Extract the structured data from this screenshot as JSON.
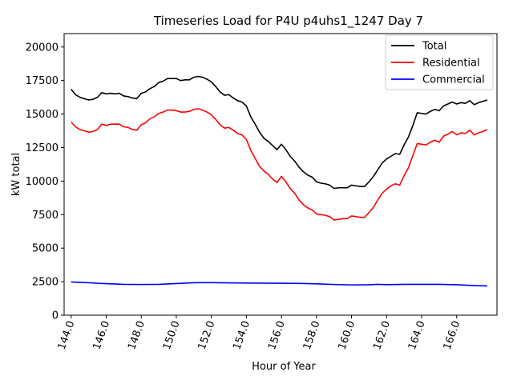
{
  "chart_data": {
    "type": "line",
    "title": "Timeseries Load for P4U p4uhs1_1247  Day 7",
    "xlabel": "Hour of Year",
    "ylabel": "kW total",
    "xlim": [
      143.6,
      168.3
    ],
    "ylim": [
      0,
      21000
    ],
    "xticks": [
      144,
      146,
      148,
      150,
      152,
      154,
      156,
      158,
      160,
      162,
      164,
      166
    ],
    "xtick_labels": [
      "144.0",
      "146.0",
      "148.0",
      "150.0",
      "152.0",
      "154.0",
      "156.0",
      "158.0",
      "160.0",
      "162.0",
      "164.0",
      "166.0"
    ],
    "yticks": [
      0,
      2500,
      5000,
      7500,
      10000,
      12500,
      15000,
      17500,
      20000
    ],
    "ytick_labels": [
      "0",
      "2500",
      "5000",
      "7500",
      "10000",
      "12500",
      "15000",
      "17500",
      "20000"
    ],
    "legend_position": "top-right",
    "series": [
      {
        "name": "Total",
        "color": "#000000",
        "x": [
          144.0,
          144.25,
          144.5,
          144.75,
          145.0,
          145.25,
          145.5,
          145.75,
          146.0,
          146.25,
          146.5,
          146.75,
          147.0,
          147.25,
          147.5,
          147.75,
          148.0,
          148.25,
          148.5,
          148.75,
          149.0,
          149.25,
          149.5,
          149.75,
          150.0,
          150.25,
          150.5,
          150.75,
          151.0,
          151.25,
          151.5,
          151.75,
          152.0,
          152.25,
          152.5,
          152.75,
          153.0,
          153.25,
          153.5,
          153.75,
          154.0,
          154.25,
          154.5,
          154.75,
          155.0,
          155.25,
          155.5,
          155.75,
          156.0,
          156.25,
          156.5,
          156.75,
          157.0,
          157.25,
          157.5,
          157.75,
          158.0,
          158.25,
          158.5,
          158.75,
          159.0,
          159.25,
          159.5,
          159.75,
          160.0,
          160.25,
          160.5,
          160.75,
          161.0,
          161.25,
          161.5,
          161.75,
          162.0,
          162.25,
          162.5,
          162.75,
          163.0,
          163.25,
          163.5,
          163.75,
          164.0,
          164.25,
          164.5,
          164.75,
          165.0,
          165.25,
          165.5,
          165.75,
          166.0,
          166.25,
          166.5,
          166.75,
          167.0,
          167.25,
          167.5,
          167.75
        ],
        "values": [
          16850,
          16450,
          16250,
          16150,
          16050,
          16100,
          16250,
          16600,
          16500,
          16550,
          16500,
          16550,
          16350,
          16300,
          16200,
          16150,
          16550,
          16650,
          16900,
          17050,
          17350,
          17450,
          17650,
          17650,
          17650,
          17500,
          17550,
          17550,
          17750,
          17800,
          17750,
          17600,
          17400,
          17050,
          16650,
          16400,
          16450,
          16200,
          16000,
          15900,
          15600,
          14800,
          14250,
          13650,
          13200,
          12950,
          12650,
          12350,
          12750,
          12350,
          11850,
          11500,
          11050,
          10700,
          10450,
          10300,
          9950,
          9850,
          9800,
          9700,
          9450,
          9500,
          9500,
          9500,
          9700,
          9650,
          9600,
          9600,
          9950,
          10350,
          10850,
          11350,
          11650,
          11850,
          12050,
          12000,
          12700,
          13300,
          14150,
          15100,
          15050,
          15000,
          15200,
          15350,
          15250,
          15600,
          15750,
          15900,
          15750,
          15850,
          15800,
          16000,
          15700,
          15850,
          15950,
          16050
        ]
      },
      {
        "name": "Residential",
        "color": "#ff0000",
        "x": [
          144.0,
          144.25,
          144.5,
          144.75,
          145.0,
          145.25,
          145.5,
          145.75,
          146.0,
          146.25,
          146.5,
          146.75,
          147.0,
          147.25,
          147.5,
          147.75,
          148.0,
          148.25,
          148.5,
          148.75,
          149.0,
          149.25,
          149.5,
          149.75,
          150.0,
          150.25,
          150.5,
          150.75,
          151.0,
          151.25,
          151.5,
          151.75,
          152.0,
          152.25,
          152.5,
          152.75,
          153.0,
          153.25,
          153.5,
          153.75,
          154.0,
          154.25,
          154.5,
          154.75,
          155.0,
          155.25,
          155.5,
          155.75,
          156.0,
          156.25,
          156.5,
          156.75,
          157.0,
          157.25,
          157.5,
          157.75,
          158.0,
          158.25,
          158.5,
          158.75,
          159.0,
          159.25,
          159.5,
          159.75,
          160.0,
          160.25,
          160.5,
          160.75,
          161.0,
          161.25,
          161.5,
          161.75,
          162.0,
          162.25,
          162.5,
          162.75,
          163.0,
          163.25,
          163.5,
          163.75,
          164.0,
          164.25,
          164.5,
          164.75,
          165.0,
          165.25,
          165.5,
          165.75,
          166.0,
          166.25,
          166.5,
          166.75,
          167.0,
          167.25,
          167.5,
          167.75
        ],
        "values": [
          14400,
          14050,
          13850,
          13750,
          13650,
          13700,
          13850,
          14250,
          14150,
          14250,
          14250,
          14250,
          14050,
          14000,
          13850,
          13800,
          14200,
          14350,
          14650,
          14800,
          15050,
          15150,
          15300,
          15300,
          15250,
          15150,
          15150,
          15200,
          15350,
          15400,
          15300,
          15150,
          14950,
          14600,
          14200,
          13950,
          14000,
          13800,
          13550,
          13450,
          13100,
          12300,
          11700,
          11100,
          10750,
          10500,
          10150,
          9900,
          10350,
          9950,
          9450,
          9100,
          8600,
          8250,
          8000,
          7850,
          7550,
          7500,
          7450,
          7350,
          7100,
          7150,
          7200,
          7200,
          7400,
          7350,
          7300,
          7300,
          7650,
          8050,
          8600,
          9100,
          9400,
          9650,
          9800,
          9700,
          10400,
          11000,
          11900,
          12800,
          12750,
          12700,
          12900,
          13050,
          12900,
          13350,
          13500,
          13700,
          13450,
          13600,
          13550,
          13800,
          13450,
          13600,
          13700,
          13850
        ]
      },
      {
        "name": "Commercial",
        "color": "#0000ff",
        "x": [
          144.0,
          145.0,
          146.0,
          147.0,
          148.0,
          149.0,
          150.0,
          151.0,
          152.0,
          153.0,
          154.0,
          155.0,
          156.0,
          157.0,
          158.0,
          159.0,
          160.0,
          161.0,
          161.5,
          162.0,
          163.0,
          164.0,
          165.0,
          166.0,
          167.0,
          167.75
        ],
        "values": [
          2480,
          2420,
          2350,
          2300,
          2290,
          2300,
          2360,
          2420,
          2430,
          2410,
          2400,
          2390,
          2380,
          2370,
          2340,
          2290,
          2260,
          2270,
          2300,
          2280,
          2300,
          2300,
          2300,
          2270,
          2210,
          2180
        ]
      }
    ]
  }
}
